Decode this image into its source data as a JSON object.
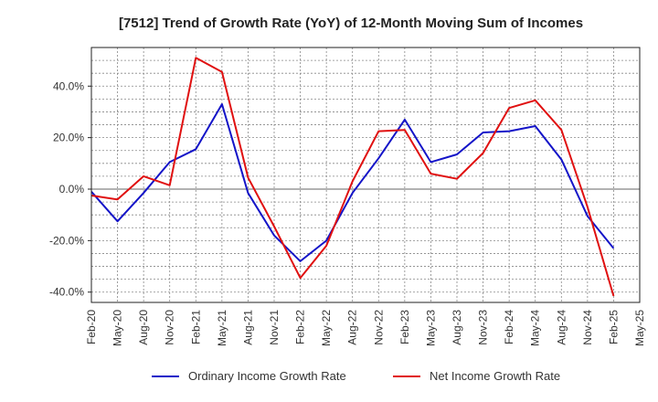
{
  "chart_data": {
    "type": "line",
    "title": "[7512]  Trend of Growth Rate (YoY) of 12-Month Moving Sum of Incomes",
    "xlabel": "",
    "ylabel": "",
    "categories": [
      "Feb-20",
      "May-20",
      "Aug-20",
      "Nov-20",
      "Feb-21",
      "May-21",
      "Aug-21",
      "Nov-21",
      "Feb-22",
      "May-22",
      "Aug-22",
      "Nov-22",
      "Feb-23",
      "May-23",
      "Aug-23",
      "Nov-23",
      "Feb-24",
      "May-24",
      "Aug-24",
      "Nov-24",
      "Feb-25",
      "May-25"
    ],
    "ylim": [
      -44,
      55
    ],
    "yticks": [
      -40,
      -20,
      0,
      20,
      40
    ],
    "ytick_labels": [
      "-40.0%",
      "-20.0%",
      "0.0%",
      "20.0%",
      "40.0%"
    ],
    "grid": true,
    "legend_position": "bottom",
    "series": [
      {
        "name": "Ordinary Income Growth Rate",
        "color": "#1414c8",
        "values": [
          -1.0,
          -12.5,
          -1.5,
          10.5,
          15.5,
          33.0,
          -1.5,
          -18.0,
          -28.0,
          -20.0,
          -1.5,
          12.0,
          27.0,
          10.5,
          13.5,
          22.0,
          22.5,
          24.5,
          11.5,
          -10.5,
          -23.0,
          null
        ]
      },
      {
        "name": "Net Income Growth Rate",
        "color": "#e01010",
        "values": [
          -2.5,
          -4.0,
          5.0,
          1.5,
          51.0,
          45.5,
          4.5,
          -14.5,
          -34.5,
          -22.0,
          3.0,
          22.5,
          23.0,
          6.0,
          4.0,
          14.0,
          31.5,
          34.5,
          23.0,
          -7.0,
          -41.5,
          null
        ]
      }
    ]
  }
}
